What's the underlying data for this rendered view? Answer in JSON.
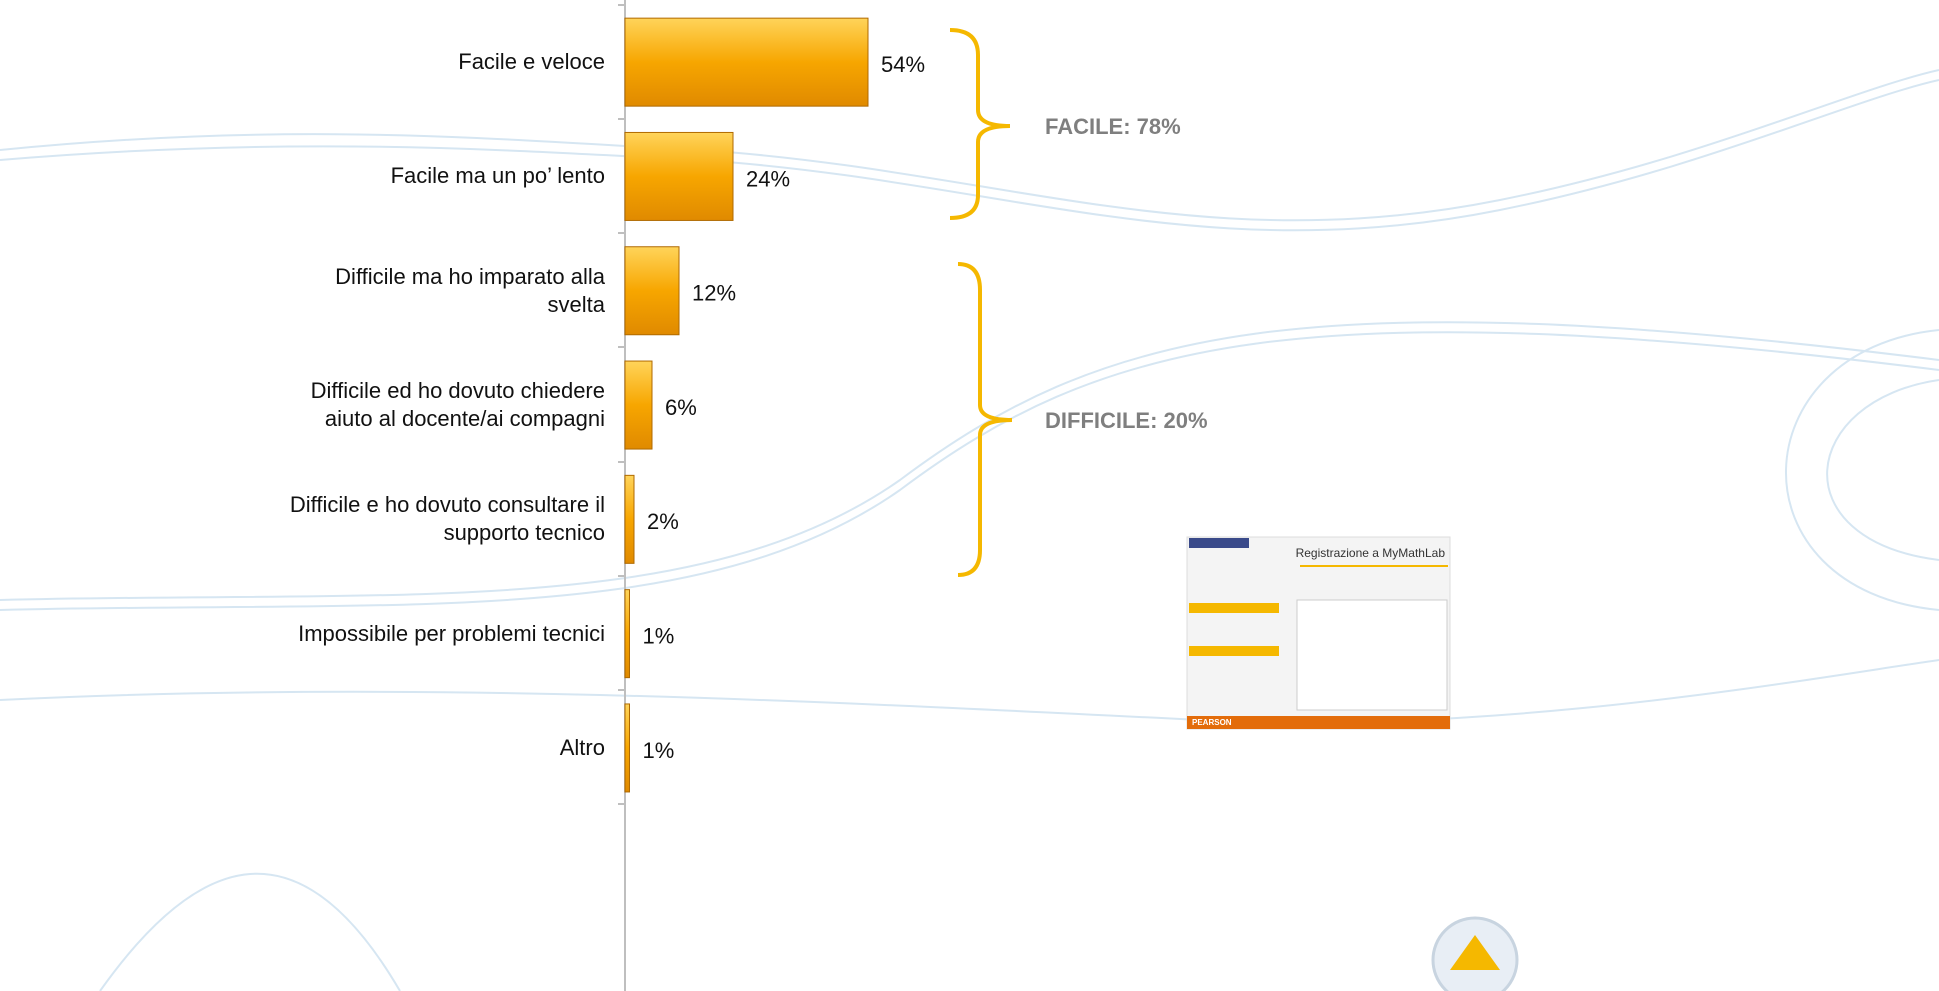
{
  "chart_data": {
    "type": "hbar",
    "categories": [
      "Facile e veloce",
      "Facile ma un po’ lento",
      "Difficile ma ho imparato alla\nsvelta",
      "Difficile ed ho dovuto chiedere\naiuto al docente/ai compagni",
      "Difficile e ho dovuto consultare il\nsupporto tecnico",
      "Impossibile per problemi tecnici",
      "Altro"
    ],
    "values": [
      54,
      24,
      12,
      6,
      2,
      1,
      1
    ],
    "value_labels": [
      "54%",
      "24%",
      "12%",
      "6%",
      "2%",
      "1%",
      "1%"
    ],
    "color": "#f7a600",
    "xlim": [
      0,
      100
    ],
    "annotations": [
      "FACILE: 78%",
      "DIFFICILE: 20%"
    ]
  },
  "thumbnail": {
    "title": "Registrazione a MyMathLab",
    "footer": "PEARSON"
  }
}
